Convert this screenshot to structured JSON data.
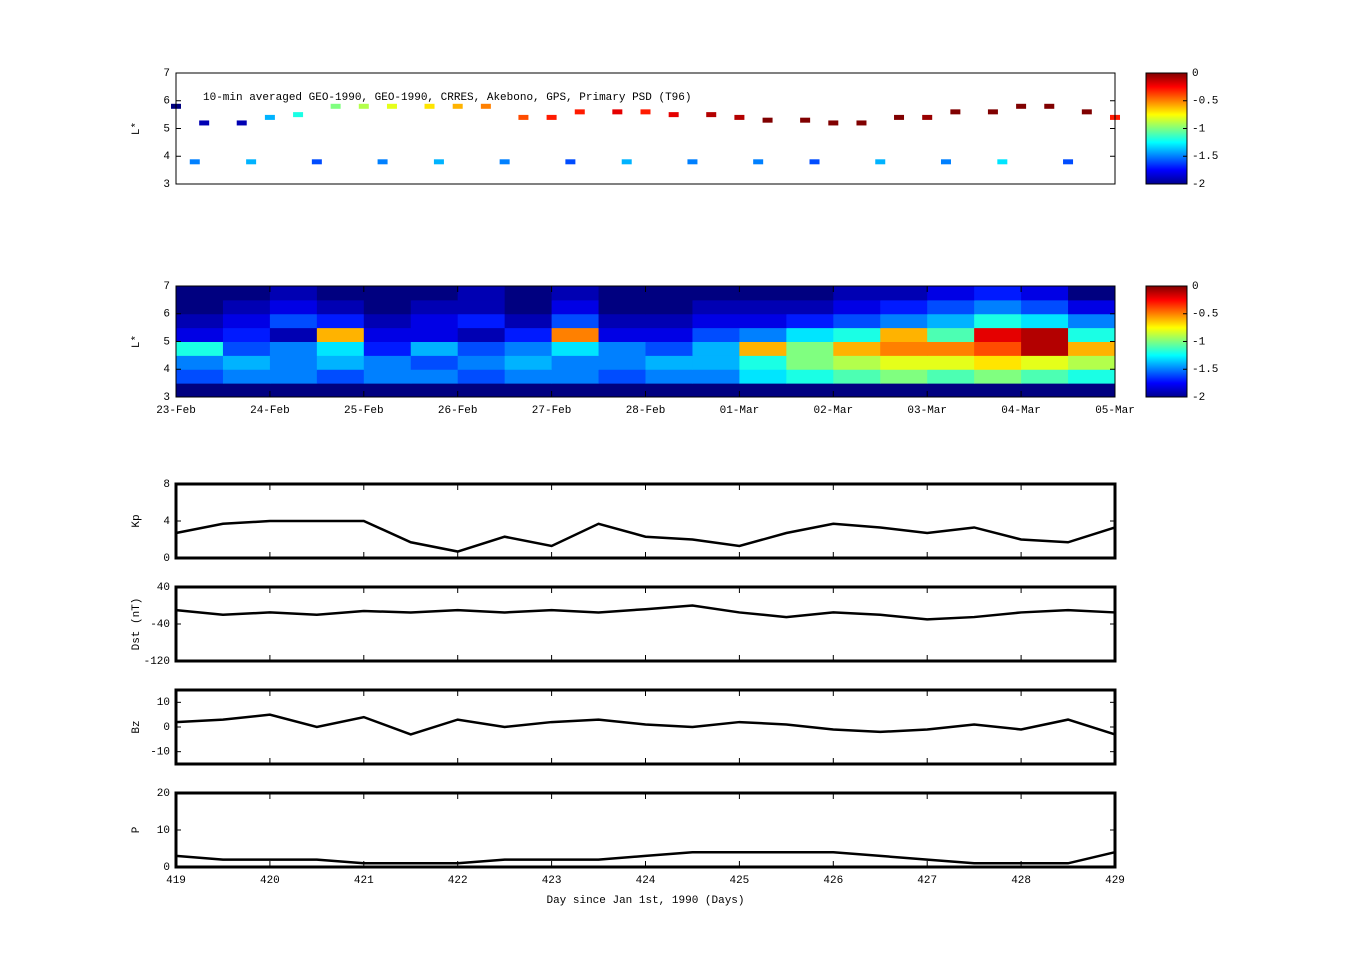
{
  "chart_data": [
    {
      "type": "scatter",
      "title": "10-min averaged GEO-1990, GEO-1990, CRRES, Akebono, GPS, Primary PSD (T96)",
      "ylabel": "L*",
      "x": [
        419.0,
        419.3,
        419.7,
        420.0,
        420.3,
        420.7,
        421.0,
        421.3,
        421.7,
        422.0,
        422.3,
        422.7,
        423.0,
        423.3,
        423.7,
        424.0,
        424.3,
        424.7,
        425.0,
        425.3,
        425.7,
        426.0,
        426.3,
        426.7,
        427.0,
        427.3,
        427.7,
        428.0,
        428.3,
        428.7,
        429.0,
        419.2,
        419.8,
        420.5,
        421.2,
        421.8,
        422.5,
        423.2,
        423.8,
        424.5,
        425.2,
        425.8,
        426.5,
        427.2,
        427.8,
        428.5
      ],
      "y": [
        5.8,
        5.2,
        5.2,
        5.4,
        5.5,
        5.8,
        5.8,
        5.8,
        5.8,
        5.8,
        5.8,
        5.4,
        5.4,
        5.6,
        5.6,
        5.6,
        5.5,
        5.5,
        5.4,
        5.3,
        5.3,
        5.2,
        5.2,
        5.4,
        5.4,
        5.6,
        5.6,
        5.8,
        5.8,
        5.6,
        5.4,
        3.8,
        3.8,
        3.8,
        3.8,
        3.8,
        3.8,
        3.8,
        3.8,
        3.8,
        3.8,
        3.8,
        3.8,
        3.8,
        3.8,
        3.8
      ],
      "c": [
        -2,
        -1.9,
        -1.9,
        -1.4,
        -1.2,
        -1.0,
        -0.9,
        -0.8,
        -0.7,
        -0.6,
        -0.5,
        -0.4,
        -0.3,
        -0.3,
        -0.2,
        -0.3,
        -0.2,
        -0.1,
        -0.1,
        0,
        0,
        0,
        0,
        0,
        -0.05,
        0,
        0,
        0,
        0,
        0,
        -0.3,
        -1.5,
        -1.4,
        -1.6,
        -1.5,
        -1.4,
        -1.5,
        -1.6,
        -1.4,
        -1.5,
        -1.5,
        -1.6,
        -1.4,
        -1.5,
        -1.3,
        -1.6
      ],
      "xlim": [
        419,
        429
      ],
      "ylim": [
        3,
        7
      ],
      "yticks": [
        3,
        4,
        5,
        6,
        7
      ],
      "clim": [
        -2,
        0
      ],
      "cticks": [
        0,
        -0.5,
        -1,
        -1.5,
        -2
      ],
      "colormap": "jet"
    },
    {
      "type": "heatmap",
      "ylabel": "L*",
      "xbins": [
        419,
        419.5,
        420,
        420.5,
        421,
        421.5,
        422,
        422.5,
        423,
        423.5,
        424,
        424.5,
        425,
        425.5,
        426,
        426.5,
        427,
        427.5,
        428,
        428.5,
        429
      ],
      "ybins": [
        3,
        3.5,
        4,
        4.5,
        5,
        5.5,
        6,
        6.5,
        7
      ],
      "z": [
        [
          -2,
          -2,
          -2,
          -2,
          -2,
          -2,
          -2,
          -2,
          -2,
          -2,
          -2,
          -2,
          -2,
          -2,
          -2,
          -2,
          -2,
          -2,
          -2,
          -2
        ],
        [
          -1.6,
          -1.5,
          -1.5,
          -1.6,
          -1.5,
          -1.5,
          -1.6,
          -1.5,
          -1.5,
          -1.6,
          -1.5,
          -1.5,
          -1.3,
          -1.2,
          -1.1,
          -1.0,
          -1.1,
          -1.0,
          -1.1,
          -1.2
        ],
        [
          -1.5,
          -1.4,
          -1.5,
          -1.4,
          -1.5,
          -1.6,
          -1.5,
          -1.4,
          -1.5,
          -1.5,
          -1.4,
          -1.4,
          -1.2,
          -1.0,
          -0.9,
          -0.8,
          -0.8,
          -0.7,
          -0.8,
          -0.9
        ],
        [
          -1.2,
          -1.6,
          -1.5,
          -1.3,
          -1.7,
          -1.4,
          -1.6,
          -1.5,
          -1.3,
          -1.5,
          -1.6,
          -1.4,
          -0.6,
          -1.0,
          -0.6,
          -0.5,
          -0.5,
          -0.4,
          -0.1,
          -0.6
        ],
        [
          -1.8,
          -1.7,
          -1.9,
          -0.6,
          -1.8,
          -1.8,
          -1.9,
          -1.7,
          -0.5,
          -1.8,
          -1.8,
          -1.6,
          -1.5,
          -1.3,
          -1.2,
          -0.6,
          -1.1,
          -0.2,
          -0.1,
          -1.2
        ],
        [
          -1.9,
          -1.8,
          -1.6,
          -1.7,
          -1.9,
          -1.8,
          -1.7,
          -1.9,
          -1.6,
          -1.9,
          -1.9,
          -1.8,
          -1.8,
          -1.7,
          -1.6,
          -1.5,
          -1.4,
          -1.2,
          -1.3,
          -1.5
        ],
        [
          -2,
          -1.9,
          -1.8,
          -1.9,
          -2,
          -1.9,
          -1.9,
          -2,
          -1.8,
          -2,
          -2,
          -1.9,
          -1.9,
          -1.9,
          -1.8,
          -1.7,
          -1.6,
          -1.5,
          -1.6,
          -1.8
        ],
        [
          -2,
          -2,
          -1.9,
          -2,
          -2,
          -2,
          -1.9,
          -2,
          -1.9,
          -2,
          -2,
          -2,
          -2,
          -2,
          -1.9,
          -1.9,
          -1.8,
          -1.7,
          -1.8,
          -2
        ]
      ],
      "xlim": [
        419,
        429
      ],
      "ylim": [
        3,
        7
      ],
      "yticks": [
        3,
        4,
        5,
        6,
        7
      ],
      "xticks": [
        {
          "value": 419,
          "label": "23-Feb"
        },
        {
          "value": 420,
          "label": "24-Feb"
        },
        {
          "value": 421,
          "label": "25-Feb"
        },
        {
          "value": 422,
          "label": "26-Feb"
        },
        {
          "value": 423,
          "label": "27-Feb"
        },
        {
          "value": 424,
          "label": "28-Feb"
        },
        {
          "value": 425,
          "label": "01-Mar"
        },
        {
          "value": 426,
          "label": "02-Mar"
        },
        {
          "value": 427,
          "label": "03-Mar"
        },
        {
          "value": 428,
          "label": "04-Mar"
        },
        {
          "value": 429,
          "label": "05-Mar"
        }
      ],
      "show_xtick_labels": true,
      "clim": [
        -2,
        0
      ],
      "cticks": [
        0,
        -0.5,
        -1,
        -1.5,
        -2
      ],
      "colormap": "jet"
    },
    {
      "type": "line",
      "ylabel": "Kp",
      "color": "#000000",
      "x": [
        419,
        419.5,
        420,
        420.5,
        421,
        421.5,
        422,
        422.5,
        423,
        423.5,
        424,
        424.5,
        425,
        425.5,
        426,
        426.5,
        427,
        427.5,
        428,
        428.5,
        429
      ],
      "values": [
        2.7,
        3.7,
        4,
        4,
        4,
        1.7,
        0.7,
        2.3,
        1.3,
        3.7,
        2.3,
        2,
        1.3,
        2.7,
        3.7,
        3.3,
        2.7,
        3.3,
        2,
        1.7,
        3.3
      ],
      "xlim": [
        419,
        429
      ],
      "ylim": [
        0,
        8
      ],
      "yticks": [
        0,
        4,
        8
      ],
      "xticks": [
        419,
        420,
        421,
        422,
        423,
        424,
        425,
        426,
        427,
        428,
        429
      ],
      "show_xtick_labels": false
    },
    {
      "type": "line",
      "ylabel": "Dst (nT)",
      "color": "#000000",
      "x": [
        419,
        419.5,
        420,
        420.5,
        421,
        421.5,
        422,
        422.5,
        423,
        423.5,
        424,
        424.5,
        425,
        425.5,
        426,
        426.5,
        427,
        427.5,
        428,
        428.5,
        429
      ],
      "values": [
        -10,
        -20,
        -15,
        -20,
        -12,
        -15,
        -10,
        -15,
        -10,
        -15,
        -8,
        0,
        -15,
        -25,
        -15,
        -20,
        -30,
        -25,
        -15,
        -10,
        -15
      ],
      "xlim": [
        419,
        429
      ],
      "ylim": [
        -120,
        40
      ],
      "yticks": [
        -120,
        -40,
        40
      ],
      "xticks": [
        419,
        420,
        421,
        422,
        423,
        424,
        425,
        426,
        427,
        428,
        429
      ],
      "show_xtick_labels": false
    },
    {
      "type": "line",
      "ylabel": "Bz",
      "color": "#000000",
      "x": [
        419,
        419.5,
        420,
        420.5,
        421,
        421.5,
        422,
        422.5,
        423,
        423.5,
        424,
        424.5,
        425,
        425.5,
        426,
        426.5,
        427,
        427.5,
        428,
        428.5,
        429
      ],
      "values": [
        2,
        3,
        5,
        0,
        4,
        -3,
        3,
        0,
        2,
        3,
        1,
        0,
        2,
        1,
        -1,
        -2,
        -1,
        1,
        -1,
        3,
        -3
      ],
      "xlim": [
        419,
        429
      ],
      "ylim": [
        -15,
        15
      ],
      "yticks": [
        -10,
        0,
        10
      ],
      "xticks": [
        419,
        420,
        421,
        422,
        423,
        424,
        425,
        426,
        427,
        428,
        429
      ],
      "show_xtick_labels": false
    },
    {
      "type": "line",
      "ylabel": "P",
      "xlabel": "Day since Jan 1st, 1990 (Days)",
      "color": "#000000",
      "x": [
        419,
        419.5,
        420,
        420.5,
        421,
        421.5,
        422,
        422.5,
        423,
        423.5,
        424,
        424.5,
        425,
        425.5,
        426,
        426.5,
        427,
        427.5,
        428,
        428.5,
        429
      ],
      "values": [
        3,
        2,
        2,
        2,
        1,
        1,
        1,
        2,
        2,
        2,
        3,
        4,
        4,
        4,
        4,
        3,
        2,
        1,
        1,
        1,
        4
      ],
      "xlim": [
        419,
        429
      ],
      "ylim": [
        0,
        20
      ],
      "yticks": [
        0,
        10,
        20
      ],
      "xticks": [
        419,
        420,
        421,
        422,
        423,
        424,
        425,
        426,
        427,
        428,
        429
      ],
      "show_xtick_labels": true
    }
  ]
}
